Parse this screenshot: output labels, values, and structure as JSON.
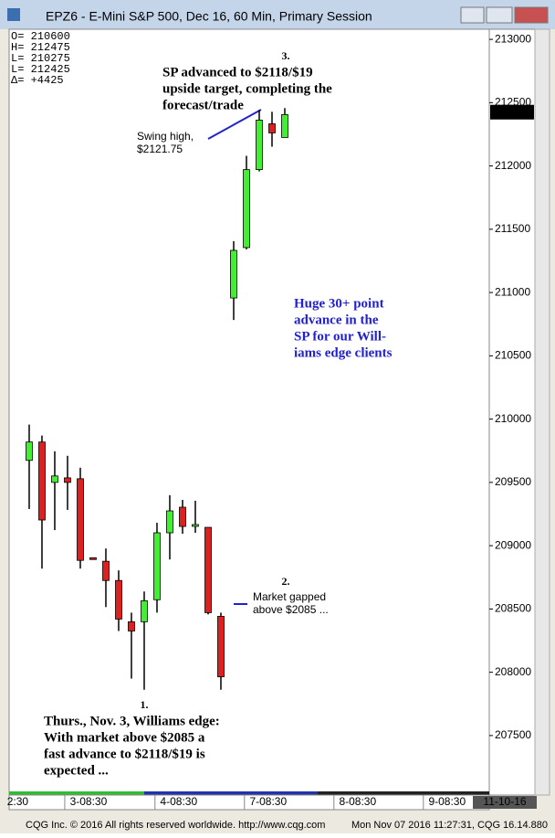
{
  "window_title": "EPZ6 - E-Mini S&P 500, Dec 16, 60 Min, Primary Session",
  "footer_left": "CQG Inc. © 2016 All rights reserved worldwide.  http://www.cqg.com",
  "footer_right": "Mon Nov 07 2016 11:27:31, CQG 16.14.880",
  "chart_data": {
    "type": "candlestick",
    "info": [
      "O= 210600",
      "H= 212475",
      "L= 210275",
      "L= 212425",
      "Δ=   +4425"
    ],
    "x": [
      0,
      1,
      2,
      3,
      4,
      5,
      6,
      7,
      8,
      9,
      10,
      11,
      12,
      13,
      14,
      15,
      16,
      17,
      18,
      19,
      20
    ],
    "open": [
      209674,
      209819,
      209500,
      209536,
      209529,
      208905,
      208877,
      208725,
      208399,
      208399,
      208573,
      209102,
      209304,
      209167,
      209145,
      208442,
      210957,
      211355,
      211971,
      212333,
      212225
    ],
    "high": [
      209957,
      209870,
      209746,
      209710,
      209616,
      208905,
      208978,
      208805,
      208471,
      208638,
      209181,
      209399,
      209362,
      209355,
      209145,
      208471,
      211406,
      212080,
      212442,
      212428,
      212457
    ],
    "low": [
      209290,
      208819,
      209123,
      209283,
      208819,
      208895,
      208515,
      208326,
      207950,
      207862,
      208471,
      208891,
      209094,
      209102,
      208457,
      207862,
      210783,
      211341,
      211957,
      212152,
      212225
    ],
    "close": [
      209819,
      209203,
      209551,
      209500,
      208884,
      208895,
      208725,
      208420,
      208326,
      208565,
      209102,
      209275,
      209152,
      209167,
      208471,
      207964,
      211333,
      211971,
      212362,
      212261,
      212406
    ],
    "up_color": "#44ee33",
    "down_color": "#dd2020",
    "xlim": [
      -1.57,
      36
    ],
    "xticks": [
      {
        "value": -0.9,
        "label": "2:30"
      },
      {
        "value": 4.64,
        "label": "3-08:30"
      },
      {
        "value": 11.7,
        "label": "4-08:30"
      },
      {
        "value": 18.7,
        "label": "7-08:30"
      },
      {
        "value": 25.7,
        "label": "8-08:30"
      },
      {
        "value": 32.7,
        "label": "9-08:30"
      }
    ],
    "date_label": "11-10-16",
    "ylim": [
      207030,
      213080
    ],
    "yticks": [
      207500,
      208000,
      208500,
      209000,
      209500,
      210000,
      210500,
      211000,
      211500,
      212000,
      212500,
      213000
    ],
    "last_price": 212425,
    "annotations": {
      "target_num": "3.",
      "target": [
        "SP advanced to $2118/$19",
        "upside target, completing the",
        "forecast/trade"
      ],
      "swing": [
        "Swing high,",
        "$2121.75"
      ],
      "huge": [
        "Huge 30+ point",
        "advance in the",
        "SP for our Will-",
        "iams edge clients"
      ],
      "gap_num": "2.",
      "gap": [
        "Market gapped",
        "above $2085 ..."
      ],
      "edge_num": "1.",
      "edge": [
        "Thurs., Nov. 3, Williams edge:",
        "With market above $2085 a",
        "fast advance to $2118/$19 is",
        "expected ..."
      ]
    }
  }
}
